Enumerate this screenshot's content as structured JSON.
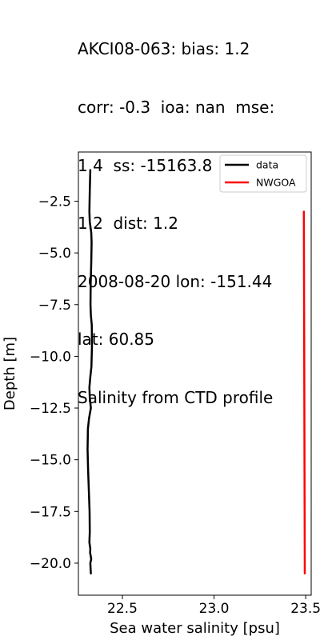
{
  "title_lines": [
    "AKCI08-063: bias: 1.2",
    "corr: -0.3  ioa: nan  mse:",
    "1.4  ss: -15163.8  rmse:",
    "1.2  dist: 1.2",
    "2008-08-20 lon: -151.44",
    "lat: 60.85",
    "Salinity from CTD profile"
  ],
  "chart_data": {
    "type": "line",
    "title": "AKCI08-063: bias: 1.2 corr: -0.3  ioa: nan  mse: 1.4  ss: -15163.8  rmse: 1.2  dist: 1.2 2008-08-20 lon: -151.44 lat: 60.85 Salinity from CTD profile",
    "xlabel": "Sea water salinity [psu]",
    "ylabel": "Depth [m]",
    "xlim": [
      22.26,
      23.53
    ],
    "ylim": [
      -21.55,
      -0.12
    ],
    "xticks": [
      22.5,
      23.0,
      23.5
    ],
    "xtick_labels": [
      "22.5",
      "23.0",
      "23.5"
    ],
    "yticks": [
      -2.5,
      -5.0,
      -7.5,
      -10.0,
      -12.5,
      -15.0,
      -17.5,
      -20.0
    ],
    "ytick_labels": [
      "−2.5",
      "−5.0",
      "−7.5",
      "−10.0",
      "−12.5",
      "−15.0",
      "−17.5",
      "−20.0"
    ],
    "grid": false,
    "legend_position": "top-right",
    "series": [
      {
        "name": "data",
        "color": "#000000",
        "x": [
          22.325,
          22.322,
          22.32,
          22.322,
          22.33,
          22.332,
          22.33,
          22.327,
          22.326,
          22.328,
          22.333,
          22.334,
          22.331,
          22.325,
          22.32,
          22.322,
          22.328,
          22.318,
          22.312,
          22.31,
          22.313,
          22.317,
          22.319,
          22.321,
          22.322,
          22.32,
          22.325,
          22.324,
          22.33,
          22.325,
          22.328
        ],
        "y": [
          -1.0,
          -2.0,
          -3.0,
          -3.5,
          -4.0,
          -4.5,
          -5.5,
          -6.5,
          -7.5,
          -8.0,
          -8.5,
          -9.5,
          -10.5,
          -11.0,
          -11.5,
          -12.0,
          -12.5,
          -13.0,
          -13.5,
          -14.5,
          -15.5,
          -16.5,
          -17.0,
          -17.5,
          -18.5,
          -19.0,
          -19.3,
          -19.5,
          -19.8,
          -20.0,
          -20.5
        ]
      },
      {
        "name": "NWGOA",
        "color": "#ff0000",
        "x": [
          23.49,
          23.495
        ],
        "y": [
          -3.0,
          -20.5
        ]
      }
    ]
  }
}
